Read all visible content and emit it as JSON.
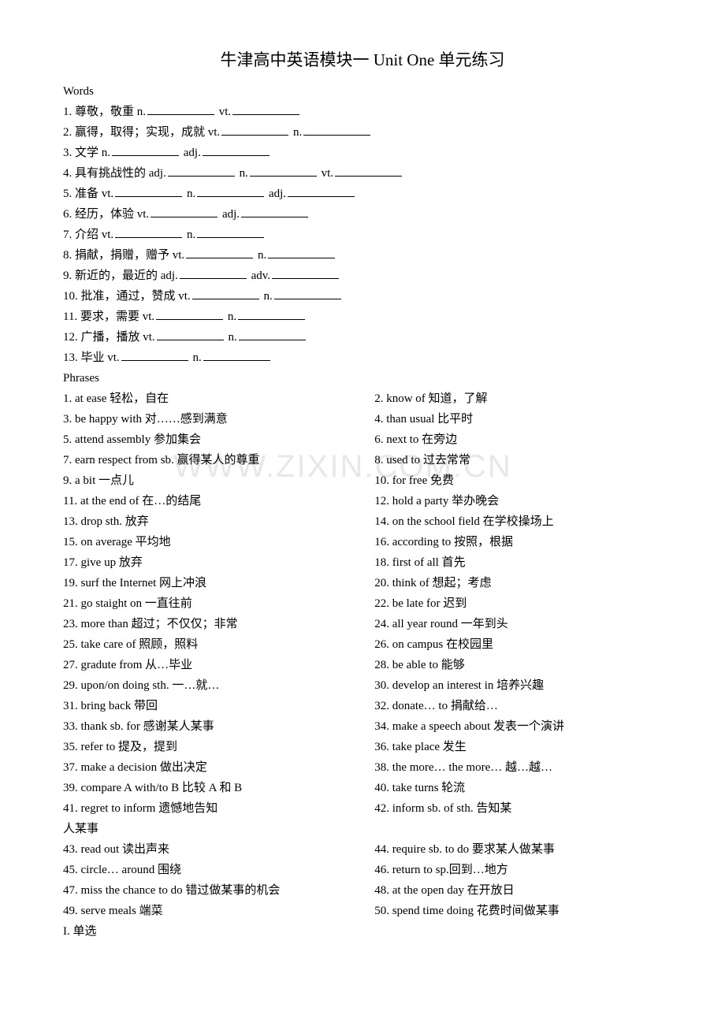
{
  "title": "牛津高中英语模块一 Unit One 单元练习",
  "sections": {
    "words_label": "Words",
    "phrases_label": "Phrases",
    "final_label": "I. 单选"
  },
  "words": [
    {
      "num": "1.",
      "cn": "尊敬，敬重",
      "parts": [
        "n.",
        "vt."
      ]
    },
    {
      "num": "2.",
      "cn": "赢得，取得；实现，成就",
      "parts": [
        "vt.",
        "n."
      ]
    },
    {
      "num": "3.",
      "cn": "文学",
      "parts": [
        "n.",
        "adj."
      ]
    },
    {
      "num": "4.",
      "cn": "具有挑战性的",
      "parts": [
        "adj.",
        "n.",
        "vt."
      ]
    },
    {
      "num": "5.",
      "cn": "准备",
      "parts": [
        "vt.",
        "n.",
        "adj."
      ]
    },
    {
      "num": "6.",
      "cn": "经历，体验",
      "parts": [
        "vt.",
        "adj."
      ]
    },
    {
      "num": "7.",
      "cn": "介绍",
      "parts": [
        "vt.",
        "n."
      ]
    },
    {
      "num": "8.",
      "cn": "捐献，捐赠，赠予",
      "parts": [
        "vt.",
        "n."
      ]
    },
    {
      "num": "9.",
      "cn": "新近的，最近的",
      "parts": [
        "adj.",
        "adv."
      ]
    },
    {
      "num": "10.",
      "cn": "批准，通过，赞成",
      "parts": [
        "vt.",
        "n."
      ]
    },
    {
      "num": "11.",
      "cn": "要求，需要",
      "parts": [
        "vt.",
        "n."
      ]
    },
    {
      "num": "12.",
      "cn": "广播，播放",
      "parts": [
        "vt.",
        "n."
      ]
    },
    {
      "num": "13.",
      "cn": "毕业",
      "parts": [
        "vt.",
        "n."
      ]
    }
  ],
  "phrases": [
    {
      "l": "1. at ease     轻松，自在",
      "r": "2. know of  知道，了解"
    },
    {
      "l": "3. be happy with  对……感到满意",
      "r": "4. than usual  比平时"
    },
    {
      "l": "5. attend assembly    参加集会",
      "r": "6. next to  在旁边"
    },
    {
      "l": "7. earn respect from sb.   赢得某人的尊重",
      "r": "8. used to  过去常常"
    },
    {
      "l": "9. a bit  一点儿",
      "r": "10. for free  免费"
    },
    {
      "l": "11. at the end of  在…的结尾",
      "r": "12. hold a party  举办晚会"
    },
    {
      "l": "13. drop sth.  放弃",
      "r": "14. on the school field  在学校操场上"
    },
    {
      "l": "15. on average     平均地",
      "r": "16. according to  按照，根据"
    },
    {
      "l": "17. give up   放弃",
      "r": "18. first of all  首先"
    },
    {
      "l": "19. surf the Internet    网上冲浪",
      "r": "20. think of  想起；考虑"
    },
    {
      "l": "21. go staight on  一直往前",
      "r": "22. be late for  迟到"
    },
    {
      "l": "23. more than    超过；不仅仅；非常",
      "r": "24. all year round  一年到头"
    },
    {
      "l": "25. take care of  照顾，照料",
      "r": "26. on campus  在校园里"
    },
    {
      "l": "27. gradute from  从…毕业",
      "r": "28. be able to  能够"
    },
    {
      "l": "29. upon/on doing sth.  一…就…",
      "r": "30. develop an interest in  培养兴趣"
    },
    {
      "l": "31. bring back     带回",
      "r": "32. donate… to  捐献给…"
    },
    {
      "l": "33. thank sb. for  感谢某人某事",
      "r": "34. make a speech about  发表一个演讲"
    },
    {
      "l": "35. refer to  提及，提到",
      "r": "36. take place  发生"
    },
    {
      "l": "37. make a decision    做出决定",
      "r": "38. the more… the more…  越…越…"
    },
    {
      "l": "39. compare A with/to B    比较 A 和 B",
      "r": "40. take turns  轮流"
    },
    {
      "l": "41. regret to inform     遗憾地告知",
      "r": "42. inform sb. of sth.  告知某"
    },
    {
      "l": "人某事",
      "r": ""
    },
    {
      "l": "43. read out  读出声来",
      "r": "44. require sb. to do  要求某人做某事"
    },
    {
      "l": "45. circle… around     围绕",
      "r": "46. return to sp.回到…地方"
    },
    {
      "l": "47. miss the chance to do  错过做某事的机会",
      "r": "48. at the open day  在开放日"
    },
    {
      "l": "49. serve meals  端菜",
      "r": "50. spend time doing  花费时间做某事"
    }
  ],
  "watermark": "WWW.ZIXIN.COM.CN"
}
